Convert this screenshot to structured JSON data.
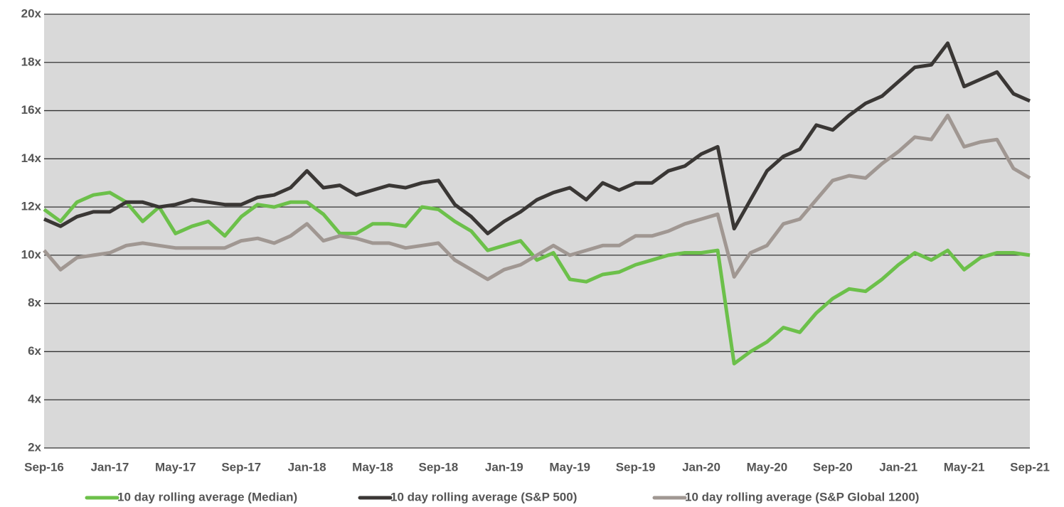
{
  "chart_data": {
    "type": "line",
    "categories": [
      "Sep-16",
      null,
      null,
      null,
      "Jan-17",
      null,
      null,
      null,
      "May-17",
      null,
      null,
      null,
      "Sep-17",
      null,
      null,
      null,
      "Jan-18",
      null,
      null,
      null,
      "May-18",
      null,
      null,
      null,
      "Sep-18",
      null,
      null,
      null,
      "Jan-19",
      null,
      null,
      null,
      "May-19",
      null,
      null,
      null,
      "Sep-19",
      null,
      null,
      null,
      "Jan-20",
      null,
      null,
      null,
      "May-20",
      null,
      null,
      null,
      "Sep-20",
      null,
      null,
      null,
      "Jan-21",
      null,
      null,
      null,
      "May-21",
      null,
      null,
      null,
      "Sep-21"
    ],
    "series": [
      {
        "name": "10 day rolling average (Median)",
        "color": "#6cc04a",
        "values": [
          11.9,
          11.4,
          12.2,
          12.5,
          12.6,
          12.2,
          11.4,
          12.0,
          10.9,
          11.2,
          11.4,
          10.8,
          11.6,
          12.1,
          12.0,
          12.2,
          12.2,
          11.7,
          10.9,
          10.9,
          11.3,
          11.3,
          11.2,
          12.0,
          11.9,
          11.4,
          11.0,
          10.2,
          10.4,
          10.6,
          9.8,
          10.1,
          9.0,
          8.9,
          9.2,
          9.3,
          9.6,
          9.8,
          10.0,
          10.1,
          10.1,
          10.2,
          5.5,
          6.0,
          6.4,
          7.0,
          6.8,
          7.6,
          8.2,
          8.6,
          8.5,
          9.0,
          9.6,
          10.1,
          9.8,
          10.2,
          9.4,
          9.9,
          10.1,
          10.1,
          10.0
        ]
      },
      {
        "name": "10 day rolling average (S&P 500)",
        "color": "#3a3735",
        "values": [
          11.5,
          11.2,
          11.6,
          11.8,
          11.8,
          12.2,
          12.2,
          12.0,
          12.1,
          12.3,
          12.2,
          12.1,
          12.1,
          12.4,
          12.5,
          12.8,
          13.5,
          12.8,
          12.9,
          12.5,
          12.7,
          12.9,
          12.8,
          13.0,
          13.1,
          12.1,
          11.6,
          10.9,
          11.4,
          11.8,
          12.3,
          12.6,
          12.8,
          12.3,
          13.0,
          12.7,
          13.0,
          13.0,
          13.5,
          13.7,
          14.2,
          14.5,
          11.1,
          12.3,
          13.5,
          14.1,
          14.4,
          15.4,
          15.2,
          15.8,
          16.3,
          16.6,
          17.2,
          17.8,
          17.9,
          18.8,
          17.0,
          17.3,
          17.6,
          16.7,
          16.4
        ]
      },
      {
        "name": "10 day rolling average (S&P Global 1200)",
        "color": "#a09792",
        "values": [
          10.2,
          9.4,
          9.9,
          10.0,
          10.1,
          10.4,
          10.5,
          10.4,
          10.3,
          10.3,
          10.3,
          10.3,
          10.6,
          10.7,
          10.5,
          10.8,
          11.3,
          10.6,
          10.8,
          10.7,
          10.5,
          10.5,
          10.3,
          10.4,
          10.5,
          9.8,
          9.4,
          9.0,
          9.4,
          9.6,
          10.0,
          10.4,
          10.0,
          10.2,
          10.4,
          10.4,
          10.8,
          10.8,
          11.0,
          11.3,
          11.5,
          11.7,
          9.1,
          10.1,
          10.4,
          11.3,
          11.5,
          12.3,
          13.1,
          13.3,
          13.2,
          13.8,
          14.3,
          14.9,
          14.8,
          15.8,
          14.5,
          14.7,
          14.8,
          13.6,
          13.2
        ]
      }
    ],
    "ylim": [
      2,
      20
    ],
    "yticks": [
      {
        "value": 2,
        "label": "2x"
      },
      {
        "value": 4,
        "label": "4x"
      },
      {
        "value": 6,
        "label": "6x"
      },
      {
        "value": 8,
        "label": "8x"
      },
      {
        "value": 10,
        "label": "10x"
      },
      {
        "value": 12,
        "label": "12x"
      },
      {
        "value": 14,
        "label": "14x"
      },
      {
        "value": 16,
        "label": "16x"
      },
      {
        "value": 18,
        "label": "18x"
      },
      {
        "value": 20,
        "label": "20x"
      }
    ],
    "grid": true,
    "legend": "bottom",
    "background": "#d9d9d9"
  }
}
